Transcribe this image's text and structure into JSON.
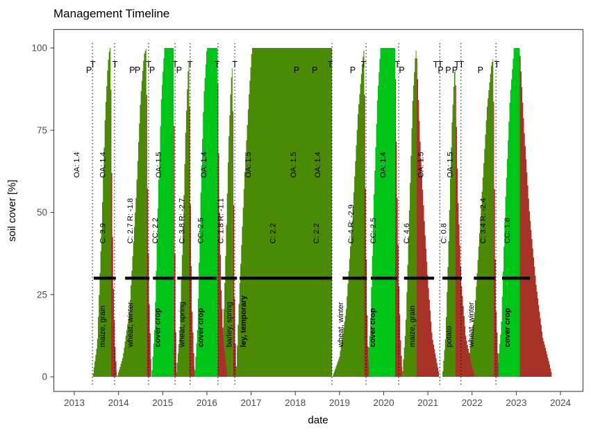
{
  "chart_data": {
    "type": "area",
    "title": "Management Timeline",
    "xlabel": "date",
    "ylabel": "soil cover [%]",
    "x_ticks": [
      2013,
      2014,
      2015,
      2016,
      2017,
      2018,
      2019,
      2020,
      2021,
      2022,
      2023,
      2024
    ],
    "y_ticks": [
      0,
      25,
      50,
      75,
      100
    ],
    "xlim": [
      2012.53,
      2024.52
    ],
    "ylim": [
      -4,
      106
    ],
    "grid": false,
    "legend": "none",
    "threshold_value": 30,
    "colors": {
      "crop": "#4a8a04",
      "cover_crop": "#00c418",
      "residue": "#a63228",
      "threshold": "#000000",
      "axis_text": "#4d4d4d",
      "panel_border": "#4d4d4d"
    },
    "segments": [
      {
        "kind": "crop",
        "name": "maize, grain",
        "points": [
          [
            2013.42,
            0
          ],
          [
            2013.52,
            10
          ],
          [
            2013.62,
            45
          ],
          [
            2013.7,
            80
          ],
          [
            2013.76,
            95
          ],
          [
            2013.8,
            100
          ],
          [
            2013.82,
            100
          ]
        ]
      },
      {
        "kind": "crop",
        "name": "wheat, winter",
        "points": [
          [
            2013.97,
            0
          ],
          [
            2014.1,
            6
          ],
          [
            2014.25,
            20
          ],
          [
            2014.4,
            55
          ],
          [
            2014.5,
            85
          ],
          [
            2014.58,
            98
          ],
          [
            2014.63,
            100
          ]
        ]
      },
      {
        "kind": "cover",
        "name": "cover crop",
        "points": [
          [
            2014.75,
            0
          ],
          [
            2014.82,
            15
          ],
          [
            2014.9,
            55
          ],
          [
            2014.97,
            85
          ],
          [
            2015.04,
            100
          ],
          [
            2015.25,
            100
          ]
        ]
      },
      {
        "kind": "crop",
        "name": "wheat, spring",
        "points": [
          [
            2015.3,
            0
          ],
          [
            2015.38,
            12
          ],
          [
            2015.45,
            40
          ],
          [
            2015.52,
            75
          ],
          [
            2015.57,
            92
          ],
          [
            2015.6,
            97
          ]
        ]
      },
      {
        "kind": "cover",
        "name": "cover crop",
        "points": [
          [
            2015.72,
            0
          ],
          [
            2015.79,
            15
          ],
          [
            2015.86,
            55
          ],
          [
            2015.93,
            85
          ],
          [
            2016.0,
            100
          ],
          [
            2016.24,
            100
          ]
        ]
      },
      {
        "kind": "crop",
        "name": "barley, spring",
        "points": [
          [
            2016.3,
            0
          ],
          [
            2016.36,
            10
          ],
          [
            2016.42,
            35
          ],
          [
            2016.49,
            70
          ],
          [
            2016.55,
            90
          ],
          [
            2016.58,
            95
          ]
        ]
      },
      {
        "kind": "crop",
        "name": "ley, temporary",
        "points": [
          [
            2016.66,
            0
          ],
          [
            2016.75,
            30
          ],
          [
            2016.85,
            60
          ],
          [
            2016.95,
            85
          ],
          [
            2017.02,
            100
          ],
          [
            2018.83,
            100
          ]
        ]
      },
      {
        "kind": "crop",
        "name": "wheat, winter",
        "points": [
          [
            2018.84,
            0
          ],
          [
            2019.0,
            6
          ],
          [
            2019.15,
            20
          ],
          [
            2019.3,
            50
          ],
          [
            2019.42,
            80
          ],
          [
            2019.52,
            96
          ],
          [
            2019.56,
            100
          ]
        ]
      },
      {
        "kind": "cover",
        "name": "cover crop",
        "points": [
          [
            2019.62,
            0
          ],
          [
            2019.7,
            15
          ],
          [
            2019.78,
            55
          ],
          [
            2019.86,
            85
          ],
          [
            2019.93,
            100
          ],
          [
            2020.26,
            100
          ]
        ]
      },
      {
        "kind": "crop",
        "name": "maize, grain",
        "points": [
          [
            2020.42,
            0
          ],
          [
            2020.5,
            15
          ],
          [
            2020.58,
            50
          ],
          [
            2020.66,
            85
          ],
          [
            2020.72,
            98
          ],
          [
            2020.74,
            100
          ]
        ]
      },
      {
        "kind": "crop",
        "name": "potato",
        "points": [
          [
            2021.33,
            0
          ],
          [
            2021.4,
            12
          ],
          [
            2021.47,
            40
          ],
          [
            2021.54,
            75
          ],
          [
            2021.6,
            92
          ],
          [
            2021.62,
            95
          ]
        ]
      },
      {
        "kind": "crop",
        "name": "wheat, winter",
        "points": [
          [
            2021.8,
            0
          ],
          [
            2021.93,
            6
          ],
          [
            2022.06,
            20
          ],
          [
            2022.2,
            50
          ],
          [
            2022.34,
            82
          ],
          [
            2022.44,
            95
          ],
          [
            2022.48,
            97
          ]
        ]
      },
      {
        "kind": "cover",
        "name": "cover crop",
        "points": [
          [
            2022.56,
            0
          ],
          [
            2022.66,
            15
          ],
          [
            2022.76,
            55
          ],
          [
            2022.86,
            85
          ],
          [
            2022.95,
            100
          ],
          [
            2023.08,
            100
          ]
        ]
      },
      {
        "kind": "residue",
        "points": [
          [
            2013.82,
            100
          ],
          [
            2013.85,
            60
          ],
          [
            2013.88,
            30
          ],
          [
            2013.92,
            10
          ],
          [
            2013.96,
            1
          ]
        ]
      },
      {
        "kind": "residue",
        "points": [
          [
            2014.63,
            100
          ],
          [
            2014.66,
            55
          ],
          [
            2014.69,
            25
          ],
          [
            2014.74,
            2
          ]
        ]
      },
      {
        "kind": "residue",
        "points": [
          [
            2015.25,
            100
          ],
          [
            2015.27,
            50
          ],
          [
            2015.29,
            20
          ],
          [
            2015.31,
            3
          ]
        ]
      },
      {
        "kind": "residue",
        "points": [
          [
            2015.6,
            97
          ],
          [
            2015.63,
            50
          ],
          [
            2015.66,
            22
          ],
          [
            2015.72,
            2
          ]
        ]
      },
      {
        "kind": "residue",
        "points": [
          [
            2016.24,
            100
          ],
          [
            2016.28,
            55
          ],
          [
            2016.32,
            28
          ],
          [
            2016.38,
            10
          ],
          [
            2016.46,
            1
          ]
        ]
      },
      {
        "kind": "residue",
        "points": [
          [
            2016.58,
            95
          ],
          [
            2016.61,
            50
          ],
          [
            2016.63,
            20
          ],
          [
            2016.66,
            2
          ]
        ]
      },
      {
        "kind": "residue",
        "points": [
          [
            2019.56,
            100
          ],
          [
            2019.59,
            55
          ],
          [
            2019.62,
            22
          ],
          [
            2019.66,
            2
          ]
        ]
      },
      {
        "kind": "residue",
        "points": [
          [
            2020.26,
            100
          ],
          [
            2020.3,
            60
          ],
          [
            2020.34,
            30
          ],
          [
            2020.38,
            12
          ],
          [
            2020.42,
            2
          ]
        ]
      },
      {
        "kind": "residue",
        "points": [
          [
            2020.74,
            100
          ],
          [
            2020.83,
            70
          ],
          [
            2020.93,
            45
          ],
          [
            2021.02,
            26
          ],
          [
            2021.1,
            12
          ],
          [
            2021.25,
            1
          ]
        ]
      },
      {
        "kind": "residue",
        "points": [
          [
            2021.62,
            95
          ],
          [
            2021.68,
            55
          ],
          [
            2021.76,
            28
          ],
          [
            2021.86,
            12
          ],
          [
            2022.0,
            3
          ],
          [
            2022.05,
            1
          ]
        ]
      },
      {
        "kind": "residue",
        "points": [
          [
            2022.48,
            97
          ],
          [
            2022.51,
            55
          ],
          [
            2022.54,
            22
          ],
          [
            2022.6,
            2
          ]
        ]
      },
      {
        "kind": "residue",
        "points": [
          [
            2023.08,
            100
          ],
          [
            2023.18,
            75
          ],
          [
            2023.3,
            50
          ],
          [
            2023.45,
            28
          ],
          [
            2023.6,
            12
          ],
          [
            2023.75,
            4
          ],
          [
            2023.8,
            1
          ]
        ]
      }
    ],
    "threshold_bars_years": [
      [
        2013.44,
        2013.94
      ],
      [
        2014.15,
        2014.7
      ],
      [
        2014.78,
        2015.25
      ],
      [
        2015.33,
        2015.72
      ],
      [
        2015.72,
        2016.22
      ],
      [
        2016.32,
        2016.68
      ],
      [
        2016.74,
        2018.83
      ],
      [
        2019.07,
        2019.62
      ],
      [
        2019.71,
        2020.31
      ],
      [
        2020.46,
        2021.14
      ],
      [
        2021.33,
        2021.77
      ],
      [
        2022.04,
        2022.52
      ],
      [
        2022.68,
        2023.31
      ]
    ],
    "event_lines_years": [
      2013.41,
      2013.91,
      2014.68,
      2015.28,
      2015.62,
      2016.25,
      2016.63,
      2018.83,
      2019.6,
      2020.34,
      2021.27,
      2021.75,
      2022.54
    ],
    "event_letters": [
      {
        "letter": "T",
        "year": 2013.42,
        "row": 1
      },
      {
        "letter": "P",
        "year": 2013.33,
        "row": 2
      },
      {
        "letter": "T",
        "year": 2013.92,
        "row": 1
      },
      {
        "letter": "P",
        "year": 2014.31,
        "row": 2
      },
      {
        "letter": "P",
        "year": 2014.43,
        "row": 2
      },
      {
        "letter": "T",
        "year": 2014.68,
        "row": 1
      },
      {
        "letter": "P",
        "year": 2014.76,
        "row": 2
      },
      {
        "letter": "T",
        "year": 2015.28,
        "row": 1
      },
      {
        "letter": "P",
        "year": 2015.37,
        "row": 2
      },
      {
        "letter": "T",
        "year": 2015.62,
        "row": 1
      },
      {
        "letter": "T",
        "year": 2016.23,
        "row": 1
      },
      {
        "letter": "T",
        "year": 2016.63,
        "row": 1
      },
      {
        "letter": "P",
        "year": 2018.03,
        "row": 2
      },
      {
        "letter": "P",
        "year": 2018.44,
        "row": 2
      },
      {
        "letter": "T",
        "year": 2018.79,
        "row": 1
      },
      {
        "letter": "P",
        "year": 2019.3,
        "row": 2
      },
      {
        "letter": "T",
        "year": 2019.55,
        "row": 1
      },
      {
        "letter": "T",
        "year": 2020.31,
        "row": 1
      },
      {
        "letter": "P",
        "year": 2020.41,
        "row": 2
      },
      {
        "letter": "T",
        "year": 2021.18,
        "row": 1
      },
      {
        "letter": "T",
        "year": 2021.28,
        "row": 1
      },
      {
        "letter": "P",
        "year": 2021.29,
        "row": 2
      },
      {
        "letter": "P",
        "year": 2021.46,
        "row": 2
      },
      {
        "letter": "P",
        "year": 2021.61,
        "row": 2
      },
      {
        "letter": "T",
        "year": 2021.66,
        "row": 1
      },
      {
        "letter": "T",
        "year": 2021.76,
        "row": 1
      },
      {
        "letter": "P",
        "year": 2022.19,
        "row": 2
      },
      {
        "letter": "T",
        "year": 2022.56,
        "row": 1
      }
    ],
    "labels": {
      "names": [
        {
          "text": "maize, grain",
          "year": 2013.63,
          "bold": false
        },
        {
          "text": "wheat, winter",
          "year": 2014.26,
          "bold": false
        },
        {
          "text": "cover crop",
          "year": 2014.88,
          "bold": true
        },
        {
          "text": "wheat, spring",
          "year": 2015.43,
          "bold": false
        },
        {
          "text": "cover crop",
          "year": 2015.85,
          "bold": true
        },
        {
          "text": "barley, spring",
          "year": 2016.5,
          "bold": false
        },
        {
          "text": "ley, temporary",
          "year": 2016.82,
          "bold": true
        },
        {
          "text": "wheat, winter",
          "year": 2019.02,
          "bold": false
        },
        {
          "text": "cover crop",
          "year": 2019.74,
          "bold": true
        },
        {
          "text": "maize, grain",
          "year": 2020.64,
          "bold": false
        },
        {
          "text": "potato",
          "year": 2021.47,
          "bold": false
        },
        {
          "text": "wheat, winter",
          "year": 2021.97,
          "bold": false
        },
        {
          "text": "cover crop",
          "year": 2022.79,
          "bold": true
        }
      ],
      "mid": [
        {
          "text": "C: 3.9",
          "year": 2013.64
        },
        {
          "text": "C: 2.7 R: -1.8",
          "year": 2014.26
        },
        {
          "text": "CC: 2.2",
          "year": 2014.82
        },
        {
          "text": "C: 3.8 R: -2.7",
          "year": 2015.43
        },
        {
          "text": "CC: 2.5",
          "year": 2015.85
        },
        {
          "text": "C: 1.8 R: -1.1",
          "year": 2016.31
        },
        {
          "text": "C: 2.2",
          "year": 2017.49
        },
        {
          "text": "C: 2.2",
          "year": 2018.47
        },
        {
          "text": "C: 4 R: -2.9",
          "year": 2019.25
        },
        {
          "text": "CC: 2.5",
          "year": 2019.76
        },
        {
          "text": "C: 4.6",
          "year": 2020.51
        },
        {
          "text": "C: 0.8",
          "year": 2021.35
        },
        {
          "text": "C: 3.4 R: -2.4",
          "year": 2022.24
        },
        {
          "text": "CC: 1.8",
          "year": 2022.79
        }
      ],
      "top": [
        {
          "text": "OA: 1.4",
          "year": 2013.05
        },
        {
          "text": "OA: 1.4",
          "year": 2013.64
        },
        {
          "text": "OA: 1.5",
          "year": 2014.9
        },
        {
          "text": "OA: 1.4",
          "year": 2015.92
        },
        {
          "text": "OA: 1.5",
          "year": 2016.93
        },
        {
          "text": "OA: 1.5",
          "year": 2017.95
        },
        {
          "text": "OA: 1.4",
          "year": 2018.5
        },
        {
          "text": "OA: 1.4",
          "year": 2019.98
        },
        {
          "text": "OA: 1.5",
          "year": 2020.83
        },
        {
          "text": "OA: 1.5",
          "year": 2021.49
        }
      ]
    }
  }
}
